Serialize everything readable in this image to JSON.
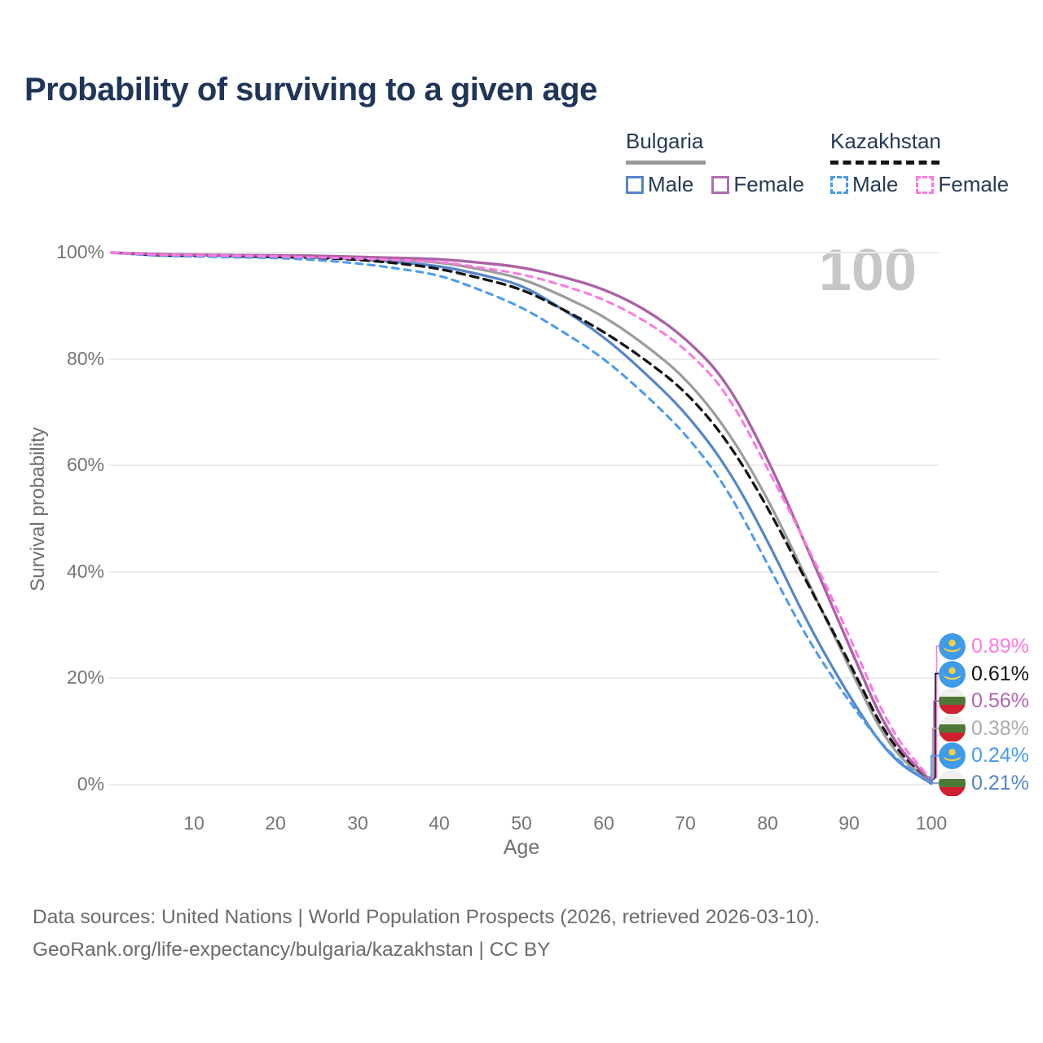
{
  "title": "Probability of surviving to a given age",
  "watermark_age": "100",
  "legend": {
    "bulgaria": {
      "label": "Bulgaria",
      "male": "Male",
      "female": "Female"
    },
    "kazakhstan": {
      "label": "Kazakhstan",
      "male": "Male",
      "female": "Female"
    }
  },
  "y_axis": {
    "label": "Survival probability",
    "ticks": [
      "100%",
      "80%",
      "60%",
      "40%",
      "20%",
      "0%"
    ]
  },
  "x_axis": {
    "label": "Age",
    "ticks": [
      "10",
      "20",
      "30",
      "40",
      "50",
      "60",
      "70",
      "80",
      "90",
      "100"
    ]
  },
  "end_labels": [
    {
      "series": "Kazakhstan Female",
      "flag": "kz",
      "value": "0.89%",
      "color": "#ff78de"
    },
    {
      "series": "Kazakhstan Both",
      "flag": "kz",
      "value": "0.61%",
      "color": "#141414"
    },
    {
      "series": "Bulgaria Female",
      "flag": "bg",
      "value": "0.56%",
      "color": "#b066b0"
    },
    {
      "series": "Bulgaria Both",
      "flag": "bg",
      "value": "0.38%",
      "color": "#ababab"
    },
    {
      "series": "Kazakhstan Male",
      "flag": "kz",
      "value": "0.24%",
      "color": "#4a9af0"
    },
    {
      "series": "Bulgaria Male",
      "flag": "bg",
      "value": "0.21%",
      "color": "#5585c9"
    }
  ],
  "footer": {
    "line1": "Data sources: United Nations | World Population Prospects (2026, retrieved 2026-03-10).",
    "line2": "GeoRank.org/life-expectancy/bulgaria/kazakhstan | CC BY"
  },
  "colors": {
    "title": "#20355a",
    "legend_text": "#273a57",
    "axis_text": "#757575",
    "gridline": "#ececec",
    "watermark": "#c7c7c7",
    "bulgaria_male": "#5585c9",
    "bulgaria_female": "#ab62a7",
    "bulgaria_both": "#9c9c9c",
    "kazakhstan_male": "#4a9af0",
    "kazakhstan_female": "#ff78de",
    "kazakhstan_both": "#141414",
    "flag_kz_blue": "#3f9bea",
    "flag_kz_yellow": "#f2cf45",
    "flag_bg_green": "#4e7837",
    "flag_bg_red": "#d02030"
  },
  "chart_data": {
    "type": "line",
    "title": "Probability of surviving to a given age",
    "xlabel": "Age",
    "ylabel": "Survival probability",
    "xlim": [
      0,
      100
    ],
    "ylim_percent": [
      0,
      100
    ],
    "grid": "horizontal",
    "legend_position": "top-right",
    "x": [
      0,
      5,
      10,
      15,
      20,
      25,
      30,
      35,
      40,
      45,
      50,
      55,
      60,
      65,
      70,
      75,
      80,
      85,
      90,
      95,
      100
    ],
    "series": [
      {
        "name": "Bulgaria Both sexes",
        "color": "#9c9c9c",
        "dash": "none",
        "width": 3.2,
        "values": [
          100,
          99.6,
          99.5,
          99.5,
          99.4,
          99.2,
          99.0,
          98.6,
          98.2,
          96.9,
          95.2,
          91.9,
          88.1,
          82.8,
          76.5,
          67.0,
          54.0,
          38.0,
          22.0,
          6.5,
          0.38
        ]
      },
      {
        "name": "Bulgaria Male",
        "color": "#5585c9",
        "dash": "none",
        "width": 3.2,
        "values": [
          100,
          99.6,
          99.5,
          99.4,
          99.3,
          99.1,
          98.8,
          98.2,
          97.5,
          95.9,
          94.0,
          89.4,
          84.3,
          77.5,
          70.0,
          60.0,
          46.0,
          30.0,
          16.5,
          5.0,
          0.21
        ]
      },
      {
        "name": "Kazakhstan Both sexes",
        "color": "#141414",
        "dash": "10 7",
        "width": 3.3,
        "values": [
          100,
          99.5,
          99.4,
          99.3,
          99.2,
          99.0,
          98.7,
          98.0,
          97.0,
          95.2,
          93.2,
          89.4,
          85.2,
          80.0,
          74.0,
          65.0,
          52.3,
          37.5,
          23.0,
          7.5,
          0.61
        ]
      },
      {
        "name": "Bulgaria Female",
        "color": "#ab62a7",
        "dash": "none",
        "width": 3.4,
        "values": [
          100,
          99.7,
          99.6,
          99.5,
          99.5,
          99.4,
          99.2,
          99.0,
          98.8,
          98.1,
          97.3,
          95.5,
          93.2,
          89.5,
          84.0,
          76.0,
          61.5,
          44.0,
          26.0,
          8.5,
          0.56
        ]
      },
      {
        "name": "Kazakhstan Male",
        "color": "#4a9af0",
        "dash": "8 7",
        "width": 3.0,
        "values": [
          100,
          99.4,
          99.3,
          99.1,
          99.0,
          98.6,
          98.0,
          97.0,
          95.8,
          93.0,
          89.8,
          85.2,
          80.2,
          73.5,
          66.0,
          56.0,
          41.5,
          27.0,
          15.5,
          5.5,
          0.24
        ]
      },
      {
        "name": "Kazakhstan Female",
        "color": "#ff78de",
        "dash": "8 7",
        "width": 3.0,
        "values": [
          100,
          99.6,
          99.5,
          99.4,
          99.3,
          99.1,
          98.9,
          98.6,
          98.3,
          97.2,
          96.0,
          93.9,
          91.3,
          87.3,
          82.0,
          74.0,
          59.5,
          44.5,
          28.0,
          10.0,
          0.89
        ]
      }
    ],
    "end_values_at_age_100": {
      "Kazakhstan Female": 0.89,
      "Kazakhstan Both": 0.61,
      "Bulgaria Female": 0.56,
      "Bulgaria Both": 0.38,
      "Kazakhstan Male": 0.24,
      "Bulgaria Male": 0.21
    }
  }
}
